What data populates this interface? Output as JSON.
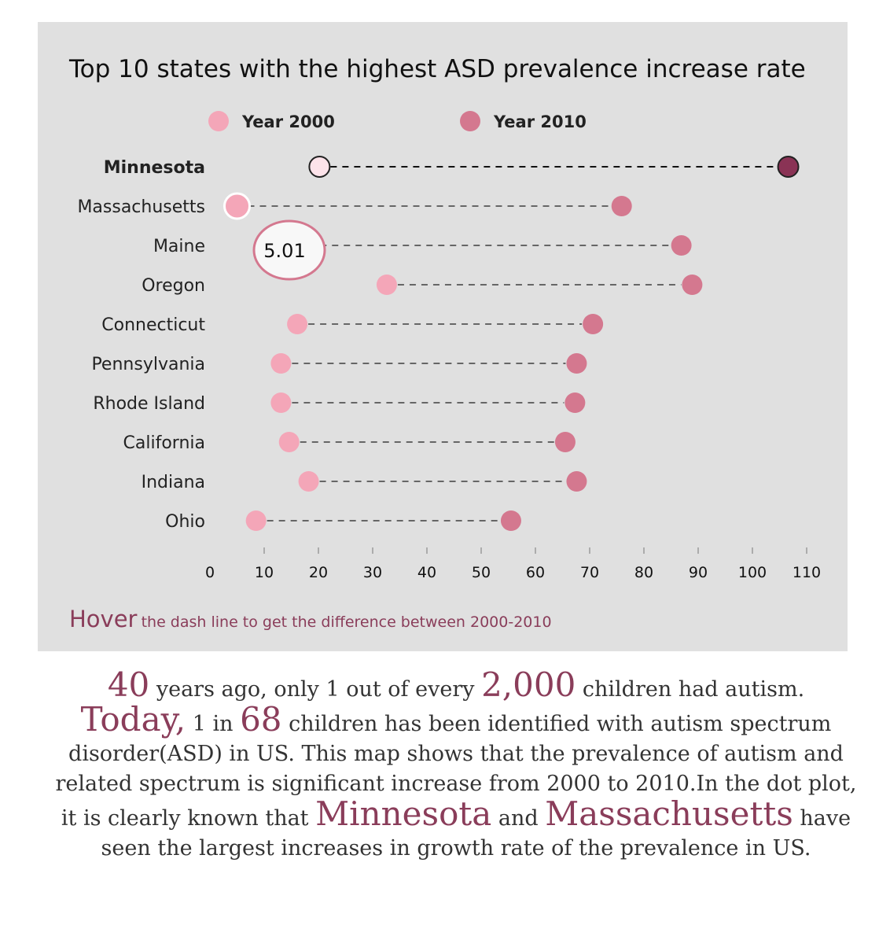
{
  "chart_data": {
    "type": "dot",
    "title": "Top 10 states with the highest ASD prevalence increase rate",
    "legend": [
      {
        "name": "Year 2000",
        "color": "#f4a6b8"
      },
      {
        "name": "Year 2010",
        "color": "#d4788f"
      }
    ],
    "series": [
      {
        "name": "Year 2000",
        "color": "#f4a6b8"
      },
      {
        "name": "Year 2010",
        "color": "#d4788f"
      }
    ],
    "categories": [
      "Minnesota",
      "Massachusetts",
      "Maine",
      "Oregon",
      "Connecticut",
      "Pennsylvania",
      "Rhode Island",
      "California",
      "Indiana",
      "Ohio"
    ],
    "values_2000": [
      20.2,
      5.0,
      18.3,
      32.6,
      16.1,
      13.1,
      13.1,
      14.6,
      18.2,
      8.5
    ],
    "values_2010": [
      106.6,
      75.9,
      86.9,
      88.9,
      70.6,
      67.6,
      67.3,
      65.5,
      67.6,
      55.5
    ],
    "highlighted": "Minnesota",
    "tooltip": {
      "value": "5.01",
      "category": "Maine"
    },
    "xlim": [
      0,
      110
    ],
    "xticks": [
      0,
      10,
      20,
      30,
      40,
      50,
      60,
      70,
      80,
      90,
      100,
      110
    ],
    "grid": false,
    "legend_position": "top"
  },
  "hint": {
    "lead": "Hover",
    "rest": "the dash line to get the difference between 2000-2010"
  },
  "story": {
    "n1": "40",
    "t1": " years ago, only 1 out of every ",
    "n2": "2,000",
    "t2": " children had autism.",
    "w1": "Today,",
    "t3": " 1 in ",
    "n3": "68",
    "t4": " children has been identified with autism spectrum disorder(ASD) in US. This map shows that the prevalence of autism and related spectrum is significant increase from 2000 to 2010.In the dot plot, it is clearly known that ",
    "s1": "Minnesota",
    "t5": " and ",
    "s2": "Massachusetts",
    "t6": " have seen the largest increases in growth rate of the prevalence in US."
  }
}
